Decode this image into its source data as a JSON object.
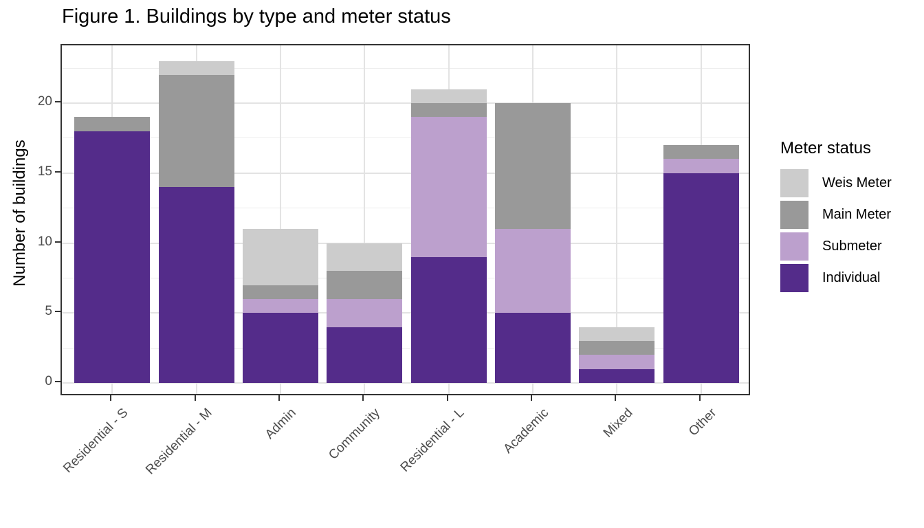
{
  "chart_data": {
    "type": "bar",
    "stacked": true,
    "title": "Figure 1. Buildings by type and meter status",
    "xlabel": "",
    "ylabel": "Number of buildings",
    "categories": [
      "Residential - S",
      "Residential - M",
      "Admin",
      "Community",
      "Residential - L",
      "Academic",
      "Mixed",
      "Other"
    ],
    "series": [
      {
        "name": "Individual",
        "color": "#542c8a",
        "values": [
          18,
          14,
          5,
          4,
          9,
          5,
          1,
          15
        ]
      },
      {
        "name": "Submeter",
        "color": "#bca0cd",
        "values": [
          0,
          0,
          1,
          2,
          10,
          6,
          1,
          1
        ]
      },
      {
        "name": "Main Meter",
        "color": "#999999",
        "values": [
          1,
          8,
          1,
          2,
          1,
          9,
          1,
          1
        ]
      },
      {
        "name": "Weis Meter",
        "color": "#cccccc",
        "values": [
          0,
          1,
          4,
          2,
          1,
          0,
          1,
          0
        ]
      }
    ],
    "totals": [
      19,
      23,
      11,
      10,
      21,
      20,
      4,
      17
    ],
    "y_ticks": [
      0,
      5,
      10,
      15,
      20
    ],
    "minor_gridlines": [
      2.5,
      7.5,
      12.5,
      17.5,
      22.5
    ],
    "ylim": [
      0,
      24.15
    ],
    "grid": true,
    "legend": {
      "title": "Meter status",
      "position": "right",
      "entries": [
        "Weis Meter",
        "Main Meter",
        "Submeter",
        "Individual"
      ]
    },
    "colors": {
      "panel_border": "#333333",
      "gridline_major": "#e3e3e3",
      "gridline_minor": "#ededed",
      "axis_text": "#4d4d4d"
    }
  }
}
